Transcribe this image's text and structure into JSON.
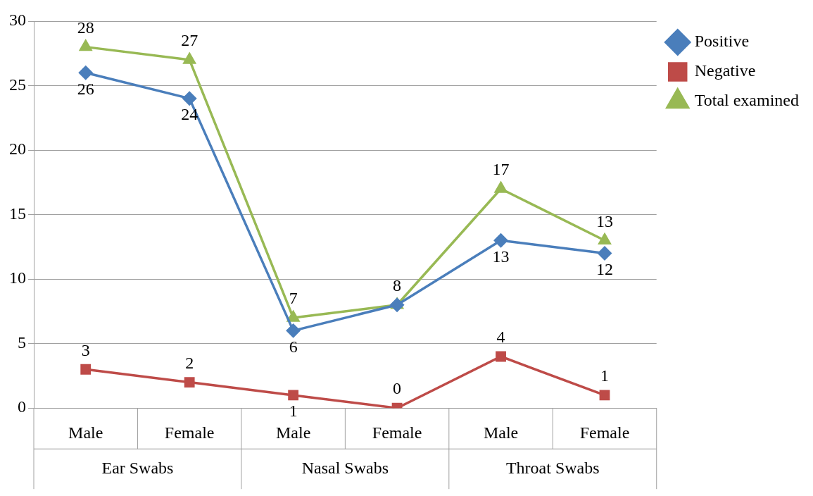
{
  "chart_data": {
    "type": "line",
    "categories": [
      "Male",
      "Female",
      "Male",
      "Female",
      "Male",
      "Female"
    ],
    "annotations": [
      "Ear Swabs",
      "Nasal Swabs",
      "Throat Swabs"
    ],
    "series": [
      {
        "name": "Positive",
        "color": "#4a7ebb",
        "marker": "diamond",
        "values": [
          26,
          24,
          6,
          8,
          13,
          12
        ],
        "value_labels": [
          "26",
          "24",
          "6",
          null,
          "13",
          "12"
        ]
      },
      {
        "name": "Negative",
        "color": "#be4b48",
        "marker": "square",
        "values": [
          3,
          2,
          1,
          0,
          4,
          1
        ],
        "value_labels": [
          "3",
          "2",
          "1",
          "0",
          "4",
          "1"
        ]
      },
      {
        "name": "Total examined",
        "color": "#98b954",
        "marker": "triangle",
        "values": [
          28,
          27,
          7,
          8,
          17,
          13
        ],
        "value_labels": [
          "28",
          "27",
          "7",
          "8",
          "17",
          "13"
        ]
      }
    ],
    "ylim": [
      0,
      30
    ],
    "yticks": [
      0,
      5,
      10,
      15,
      20,
      25,
      30
    ],
    "grid": "y",
    "legend": "top right"
  }
}
